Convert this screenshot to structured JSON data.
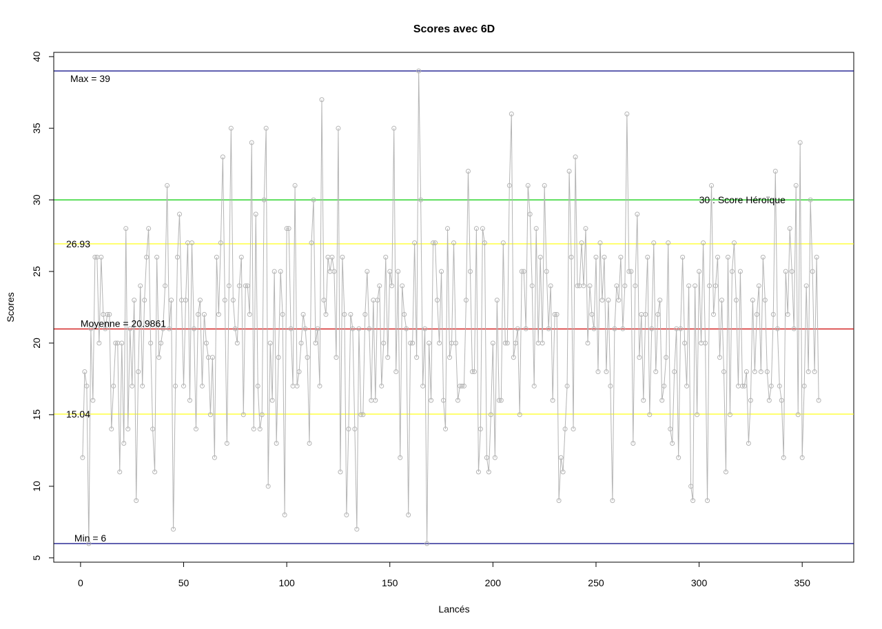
{
  "chart_data": {
    "type": "line",
    "title": "Scores avec 6D",
    "xlabel": "Lancés",
    "ylabel": "Scores",
    "xlim": [
      -13,
      375
    ],
    "ylim": [
      4.7,
      40.3
    ],
    "x_ticks": [
      0,
      50,
      100,
      150,
      200,
      250,
      300,
      350
    ],
    "y_ticks": [
      5,
      10,
      15,
      20,
      25,
      30,
      35,
      40
    ],
    "grid": false,
    "series": [
      {
        "name": "",
        "color": "#b4b4b4",
        "marker": "open-circle",
        "x_start": 1,
        "values": [
          12,
          18,
          17,
          6,
          21,
          16,
          26,
          26,
          20,
          26,
          22,
          21,
          22,
          22,
          14,
          17,
          20,
          20,
          11,
          20,
          13,
          28,
          14,
          21,
          17,
          23,
          9,
          18,
          24,
          17,
          23,
          26,
          28,
          20,
          14,
          11,
          26,
          19,
          20,
          21,
          24,
          31,
          21,
          23,
          7,
          17,
          26,
          29,
          23,
          17,
          23,
          27,
          16,
          27,
          21,
          14,
          22,
          23,
          17,
          22,
          20,
          19,
          15,
          19,
          12,
          26,
          22,
          27,
          33,
          23,
          13,
          24,
          35,
          23,
          21,
          20,
          24,
          26,
          15,
          24,
          24,
          22,
          34,
          14,
          29,
          17,
          14,
          15,
          30,
          35,
          10,
          20,
          16,
          25,
          13,
          19,
          25,
          22,
          8,
          28,
          28,
          21,
          17,
          31,
          17,
          18,
          20,
          22,
          21,
          19,
          13,
          27,
          30,
          20,
          21,
          17,
          37,
          23,
          22,
          26,
          25,
          26,
          25,
          19,
          35,
          11,
          26,
          22,
          8,
          14,
          22,
          21,
          14,
          7,
          21,
          15,
          15,
          22,
          25,
          21,
          16,
          23,
          16,
          23,
          24,
          17,
          20,
          26,
          19,
          25,
          24,
          35,
          18,
          25,
          12,
          24,
          22,
          21,
          8,
          20,
          20,
          27,
          19,
          39,
          30,
          17,
          21,
          6,
          20,
          16,
          27,
          27,
          23,
          20,
          25,
          16,
          14,
          28,
          19,
          20,
          27,
          20,
          16,
          17,
          17,
          17,
          23,
          32,
          25,
          18,
          18,
          28,
          11,
          14,
          28,
          27,
          12,
          11,
          15,
          20,
          12,
          23,
          16,
          16,
          27,
          20,
          20,
          31,
          36,
          19,
          20,
          21,
          15,
          25,
          25,
          21,
          31,
          29,
          24,
          17,
          28,
          20,
          26,
          20,
          31,
          25,
          21,
          24,
          16,
          22,
          22,
          9,
          12,
          11,
          14,
          17,
          32,
          26,
          14,
          33,
          24,
          24,
          27,
          24,
          28,
          20,
          24,
          22,
          21,
          26,
          18,
          27,
          23,
          26,
          18,
          23,
          17,
          9,
          21,
          24,
          23,
          26,
          21,
          24,
          36,
          25,
          25,
          13,
          24,
          29,
          19,
          22,
          16,
          22,
          26,
          15,
          21,
          27,
          18,
          22,
          23,
          16,
          17,
          19,
          27,
          14,
          13,
          18,
          21,
          12,
          21,
          26,
          20,
          17,
          24,
          10,
          9,
          24,
          15,
          25,
          20,
          27,
          20,
          9,
          24,
          31,
          22,
          24,
          26,
          19,
          23,
          18,
          11,
          26,
          15,
          25,
          27,
          23,
          17,
          25,
          17,
          17,
          18,
          13,
          16,
          23,
          18,
          22,
          24,
          18,
          26,
          23,
          18,
          16,
          17,
          22,
          32,
          21,
          17,
          16,
          12,
          25,
          22,
          28,
          25,
          21,
          31,
          15,
          34,
          12,
          17,
          24,
          18,
          30,
          25,
          18,
          26,
          16
        ]
      }
    ],
    "reference_lines": [
      {
        "y": 39,
        "color": "#000080",
        "label": "Max =  39",
        "label_x": -5,
        "label_pos": "below"
      },
      {
        "y": 30,
        "color": "#00cc00",
        "label": "30 : Score Héroïque",
        "label_x": 300,
        "label_pos": "on"
      },
      {
        "y": 26.93,
        "color": "#ffff00",
        "label": "26.93",
        "label_x": -7,
        "label_pos": "on"
      },
      {
        "y": 20.9861,
        "color": "#cc0000",
        "label": "Moyenne =  20.9861",
        "label_x": 0,
        "label_pos": "above"
      },
      {
        "y": 15.04,
        "color": "#ffff00",
        "label": "15.04",
        "label_x": -7,
        "label_pos": "on"
      },
      {
        "y": 6,
        "color": "#000080",
        "label": "Min =  6",
        "label_x": -3,
        "label_pos": "above"
      }
    ]
  }
}
